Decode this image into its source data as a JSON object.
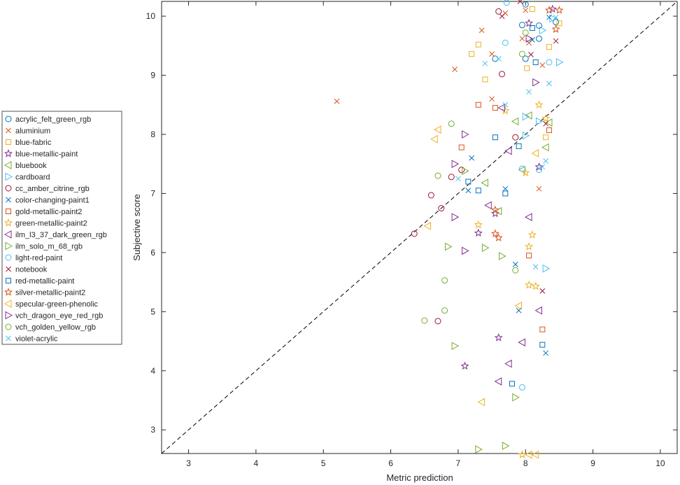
{
  "chart_data": {
    "type": "scatter",
    "xlabel": "Metric prediction",
    "ylabel": "Subjective score",
    "xlim": [
      2.6,
      10.25
    ],
    "ylim": [
      2.6,
      10.25
    ],
    "xticks": [
      "3",
      "4",
      "5",
      "6",
      "7",
      "8",
      "9",
      "10"
    ],
    "yticks": [
      "3",
      "4",
      "5",
      "6",
      "7",
      "8",
      "9",
      "10"
    ],
    "grid": false,
    "legend_placement": "outside-left",
    "reference_line": "identity (dashed)",
    "series": [
      {
        "name": "acrylic_felt_green_rgb",
        "marker": "circle",
        "color": "#0072BD",
        "points": [
          [
            7.55,
            9.28
          ],
          [
            8.0,
            9.28
          ],
          [
            8.2,
            9.84
          ],
          [
            8.45,
            9.9
          ],
          [
            8.2,
            9.62
          ],
          [
            7.95,
            9.85
          ],
          [
            8.0,
            10.2
          ]
        ]
      },
      {
        "name": "aluminium",
        "marker": "x",
        "color": "#D95319",
        "points": [
          [
            5.2,
            8.56
          ],
          [
            6.95,
            9.1
          ],
          [
            7.35,
            9.76
          ],
          [
            7.5,
            9.36
          ],
          [
            7.7,
            10.05
          ],
          [
            7.95,
            9.62
          ],
          [
            8.0,
            10.1
          ],
          [
            8.25,
            9.17
          ],
          [
            8.2,
            7.08
          ],
          [
            7.5,
            8.6
          ],
          [
            8.05,
            9.55
          ]
        ]
      },
      {
        "name": "blue-fabric",
        "marker": "square",
        "color": "#EDB120",
        "points": [
          [
            7.2,
            9.36
          ],
          [
            7.3,
            9.52
          ],
          [
            7.4,
            8.93
          ],
          [
            8.1,
            10.12
          ],
          [
            8.35,
            9.48
          ],
          [
            8.5,
            9.88
          ],
          [
            8.3,
            7.95
          ],
          [
            8.02,
            9.12
          ]
        ]
      },
      {
        "name": "blue-metallic-paint",
        "marker": "star",
        "color": "#7E2F8E",
        "points": [
          [
            8.05,
            9.88
          ],
          [
            8.4,
            10.12
          ],
          [
            8.2,
            7.45
          ],
          [
            7.55,
            6.66
          ],
          [
            7.3,
            6.33
          ],
          [
            7.1,
            4.08
          ],
          [
            7.6,
            4.56
          ]
        ]
      },
      {
        "name": "bluebook",
        "marker": "triangle-left",
        "color": "#77AC30",
        "points": [
          [
            8.35,
            8.2
          ],
          [
            8.3,
            7.78
          ],
          [
            8.05,
            8.32
          ],
          [
            7.95,
            7.4
          ],
          [
            7.85,
            8.22
          ],
          [
            7.6,
            6.7
          ],
          [
            7.4,
            7.18
          ]
        ]
      },
      {
        "name": "cardboard",
        "marker": "triangle-right",
        "color": "#4DBEEE",
        "points": [
          [
            8.5,
            9.22
          ],
          [
            8.4,
            9.96
          ],
          [
            8.25,
            9.76
          ],
          [
            8.2,
            8.22
          ],
          [
            8.0,
            7.98
          ],
          [
            8.0,
            8.3
          ],
          [
            8.3,
            5.73
          ]
        ]
      },
      {
        "name": "cc_amber_citrine_rgb",
        "marker": "circle",
        "color": "#A2142F",
        "points": [
          [
            7.6,
            10.08
          ],
          [
            7.65,
            9.02
          ],
          [
            7.85,
            7.95
          ],
          [
            7.05,
            7.4
          ],
          [
            6.9,
            7.28
          ],
          [
            6.6,
            6.97
          ],
          [
            6.75,
            6.75
          ],
          [
            6.35,
            6.32
          ],
          [
            6.7,
            4.84
          ]
        ]
      },
      {
        "name": "color-changing-paint1",
        "marker": "x",
        "color": "#0072BD",
        "points": [
          [
            8.35,
            9.98
          ],
          [
            8.1,
            9.6
          ],
          [
            7.2,
            7.6
          ],
          [
            7.15,
            7.05
          ],
          [
            7.7,
            7.08
          ],
          [
            7.85,
            5.8
          ],
          [
            7.9,
            5.02
          ],
          [
            8.3,
            4.3
          ]
        ]
      },
      {
        "name": "gold-metallic-paint2",
        "marker": "square",
        "color": "#D95319",
        "points": [
          [
            7.3,
            8.5
          ],
          [
            7.55,
            8.45
          ],
          [
            7.05,
            7.78
          ],
          [
            8.35,
            8.07
          ],
          [
            8.05,
            5.95
          ],
          [
            8.25,
            4.7
          ]
        ]
      },
      {
        "name": "green-metallic-paint2",
        "marker": "star",
        "color": "#EDB120",
        "points": [
          [
            8.2,
            8.5
          ],
          [
            8.3,
            8.27
          ],
          [
            7.7,
            8.4
          ],
          [
            8.0,
            7.35
          ],
          [
            7.3,
            6.47
          ],
          [
            8.1,
            6.3
          ],
          [
            8.05,
            6.1
          ],
          [
            8.05,
            5.45
          ],
          [
            8.15,
            5.43
          ],
          [
            7.95,
            2.58
          ]
        ]
      },
      {
        "name": "ilm_l3_37_dark_green_rgb",
        "marker": "triangle-left",
        "color": "#7E2F8E",
        "points": [
          [
            7.65,
            8.45
          ],
          [
            7.75,
            7.72
          ],
          [
            7.45,
            6.8
          ],
          [
            7.95,
            4.48
          ],
          [
            7.75,
            4.12
          ],
          [
            7.6,
            3.82
          ],
          [
            8.05,
            6.6
          ],
          [
            8.2,
            5.02
          ]
        ]
      },
      {
        "name": "ilm_solo_m_68_rgb",
        "marker": "triangle-right",
        "color": "#77AC30",
        "points": [
          [
            7.1,
            7.38
          ],
          [
            6.85,
            6.1
          ],
          [
            7.4,
            6.08
          ],
          [
            7.65,
            5.94
          ],
          [
            6.95,
            4.42
          ],
          [
            7.3,
            2.67
          ],
          [
            7.7,
            2.73
          ],
          [
            7.85,
            3.55
          ]
        ]
      },
      {
        "name": "light-red-paint",
        "marker": "circle",
        "color": "#4DBEEE",
        "points": [
          [
            7.72,
            10.23
          ],
          [
            7.7,
            9.55
          ],
          [
            8.35,
            9.22
          ],
          [
            8.2,
            7.4
          ],
          [
            7.95,
            7.42
          ],
          [
            7.95,
            3.72
          ]
        ]
      },
      {
        "name": "notebook",
        "marker": "x",
        "color": "#A2142F",
        "points": [
          [
            7.92,
            10.25
          ],
          [
            8.45,
            9.58
          ],
          [
            8.3,
            8.18
          ],
          [
            8.25,
            5.35
          ],
          [
            7.65,
            10.0
          ],
          [
            8.08,
            9.35
          ]
        ]
      },
      {
        "name": "red-metallic-paint",
        "marker": "square",
        "color": "#0072BD",
        "points": [
          [
            7.55,
            7.95
          ],
          [
            7.9,
            7.8
          ],
          [
            7.15,
            7.2
          ],
          [
            7.3,
            7.05
          ],
          [
            7.7,
            7.0
          ],
          [
            8.25,
            4.44
          ],
          [
            7.8,
            3.78
          ],
          [
            8.15,
            9.22
          ],
          [
            8.1,
            9.8
          ]
        ]
      },
      {
        "name": "silver-metallic-paint2",
        "marker": "star",
        "color": "#D95319",
        "points": [
          [
            8.35,
            10.1
          ],
          [
            8.5,
            10.1
          ],
          [
            8.45,
            9.78
          ],
          [
            7.55,
            6.32
          ],
          [
            7.6,
            6.25
          ],
          [
            7.55,
            6.72
          ]
        ]
      },
      {
        "name": "specular-green-phenolic",
        "marker": "triangle-left",
        "color": "#EDB120",
        "points": [
          [
            6.7,
            8.08
          ],
          [
            6.65,
            7.92
          ],
          [
            8.15,
            7.68
          ],
          [
            6.55,
            6.45
          ],
          [
            7.9,
            5.1
          ],
          [
            7.35,
            3.47
          ],
          [
            8.05,
            2.58
          ],
          [
            8.15,
            2.58
          ]
        ]
      },
      {
        "name": "vch_dragon_eye_red_rgb",
        "marker": "triangle-right",
        "color": "#7E2F8E",
        "points": [
          [
            7.1,
            8.0
          ],
          [
            6.95,
            7.5
          ],
          [
            6.95,
            6.6
          ],
          [
            7.1,
            6.03
          ],
          [
            8.05,
            9.62
          ],
          [
            8.15,
            8.88
          ]
        ]
      },
      {
        "name": "vch_golden_yellow_rgb",
        "marker": "circle",
        "color": "#77AC30",
        "points": [
          [
            6.9,
            8.18
          ],
          [
            6.7,
            7.3
          ],
          [
            6.8,
            5.53
          ],
          [
            6.8,
            5.02
          ],
          [
            6.5,
            4.85
          ],
          [
            7.85,
            5.7
          ],
          [
            8.0,
            9.72
          ],
          [
            7.95,
            9.36
          ]
        ]
      },
      {
        "name": "violet-acrylic",
        "marker": "x",
        "color": "#4DBEEE",
        "points": [
          [
            7.4,
            9.2
          ],
          [
            7.6,
            9.28
          ],
          [
            7.7,
            8.5
          ],
          [
            8.05,
            8.72
          ],
          [
            8.35,
            8.86
          ],
          [
            8.3,
            7.55
          ],
          [
            8.15,
            5.76
          ],
          [
            8.25,
            7.45
          ],
          [
            7.0,
            7.25
          ],
          [
            8.45,
            9.98
          ]
        ]
      }
    ]
  }
}
